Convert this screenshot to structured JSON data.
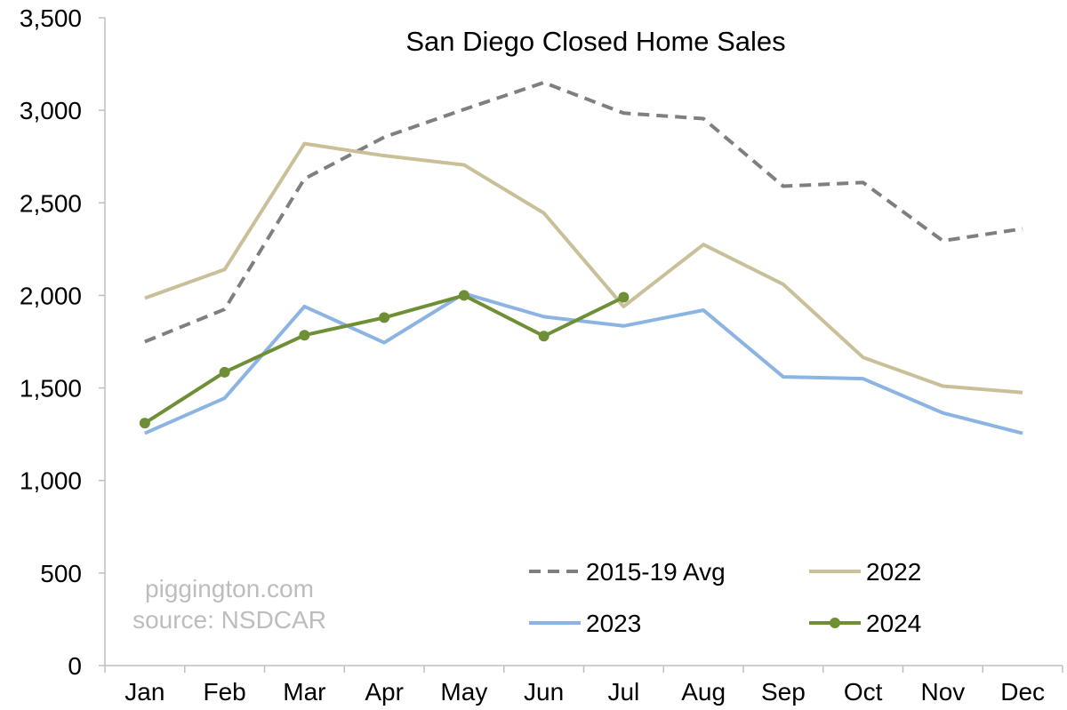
{
  "chart_data": {
    "type": "line",
    "title": "San Diego Closed Home Sales",
    "xlabel": "",
    "ylabel": "",
    "categories": [
      "Jan",
      "Feb",
      "Mar",
      "Apr",
      "May",
      "Jun",
      "Jul",
      "Aug",
      "Sep",
      "Oct",
      "Nov",
      "Dec"
    ],
    "ylim": [
      0,
      3500
    ],
    "yticks": [
      0,
      500,
      1000,
      1500,
      2000,
      2500,
      3000,
      3500
    ],
    "ytick_labels": [
      "0",
      "500",
      "1,000",
      "1,500",
      "2,000",
      "2,500",
      "3,000",
      "3,500"
    ],
    "grid": false,
    "legend_position": "bottom-right",
    "series": [
      {
        "name": "2015-19 Avg",
        "color": "#7f7f7f",
        "style": "dashed",
        "markers": false,
        "values": [
          1750,
          1925,
          2630,
          2855,
          3005,
          3150,
          2985,
          2955,
          2590,
          2610,
          2295,
          2360
        ]
      },
      {
        "name": "2022",
        "color": "#c9bf98",
        "style": "solid",
        "markers": false,
        "values": [
          1985,
          2140,
          2820,
          2755,
          2705,
          2445,
          1940,
          2275,
          2060,
          1665,
          1510,
          1475
        ]
      },
      {
        "name": "2023",
        "color": "#8cb4e2",
        "style": "solid",
        "markers": false,
        "values": [
          1255,
          1445,
          1940,
          1745,
          2010,
          1885,
          1835,
          1920,
          1560,
          1550,
          1365,
          1255
        ]
      },
      {
        "name": "2024",
        "color": "#6e8f35",
        "style": "solid",
        "markers": true,
        "values": [
          1310,
          1585,
          1785,
          1880,
          2000,
          1780,
          1990,
          null,
          null,
          null,
          null,
          null
        ]
      }
    ],
    "annotations": [
      "piggington.com",
      "source: NSDCAR"
    ]
  }
}
